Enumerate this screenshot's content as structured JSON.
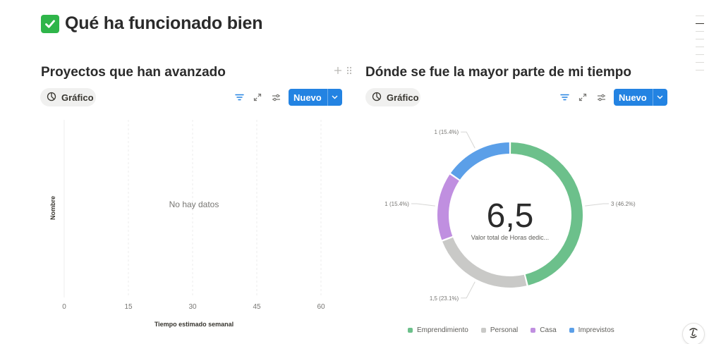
{
  "page": {
    "title": "Qué ha funcionado bien",
    "title_icon": "check-mark-button-icon"
  },
  "left_block": {
    "title": "Proyectos que han avanzado",
    "view_label": "Gráfico",
    "new_label": "Nuevo",
    "chart_data": {
      "type": "bar",
      "orientation": "horizontal",
      "categories": [],
      "values": [],
      "empty_text": "No hay datos",
      "xlabel": "Tiempo estimado semanal",
      "ylabel": "Nombre",
      "xticks": [
        "0",
        "15",
        "30",
        "45",
        "60"
      ],
      "xlim": [
        0,
        60
      ],
      "grid": true
    }
  },
  "right_block": {
    "title": "Dónde se fue la mayor parte de mi tiempo",
    "view_label": "Gráfico",
    "new_label": "Nuevo",
    "chart_data": {
      "type": "pie",
      "style": "donut",
      "center_value": "6,5",
      "center_caption": "Valor total de Horas dedic...",
      "slices": [
        {
          "name": "Emprendimiento",
          "value": 3,
          "label": "3 (46.2%)",
          "color": "#6cc08b"
        },
        {
          "name": "Personal",
          "value": 1.5,
          "label": "1,5 (23.1%)",
          "color": "#c9c9c7"
        },
        {
          "name": "Casa",
          "value": 1,
          "label": "1 (15.4%)",
          "color": "#c08fe0"
        },
        {
          "name": "Imprevistos",
          "value": 1,
          "label": "1 (15.4%)",
          "color": "#5b9fe8"
        }
      ],
      "legend_position": "bottom"
    }
  },
  "colors": {
    "accent": "#2383e2",
    "check_green": "#2fb54a"
  }
}
